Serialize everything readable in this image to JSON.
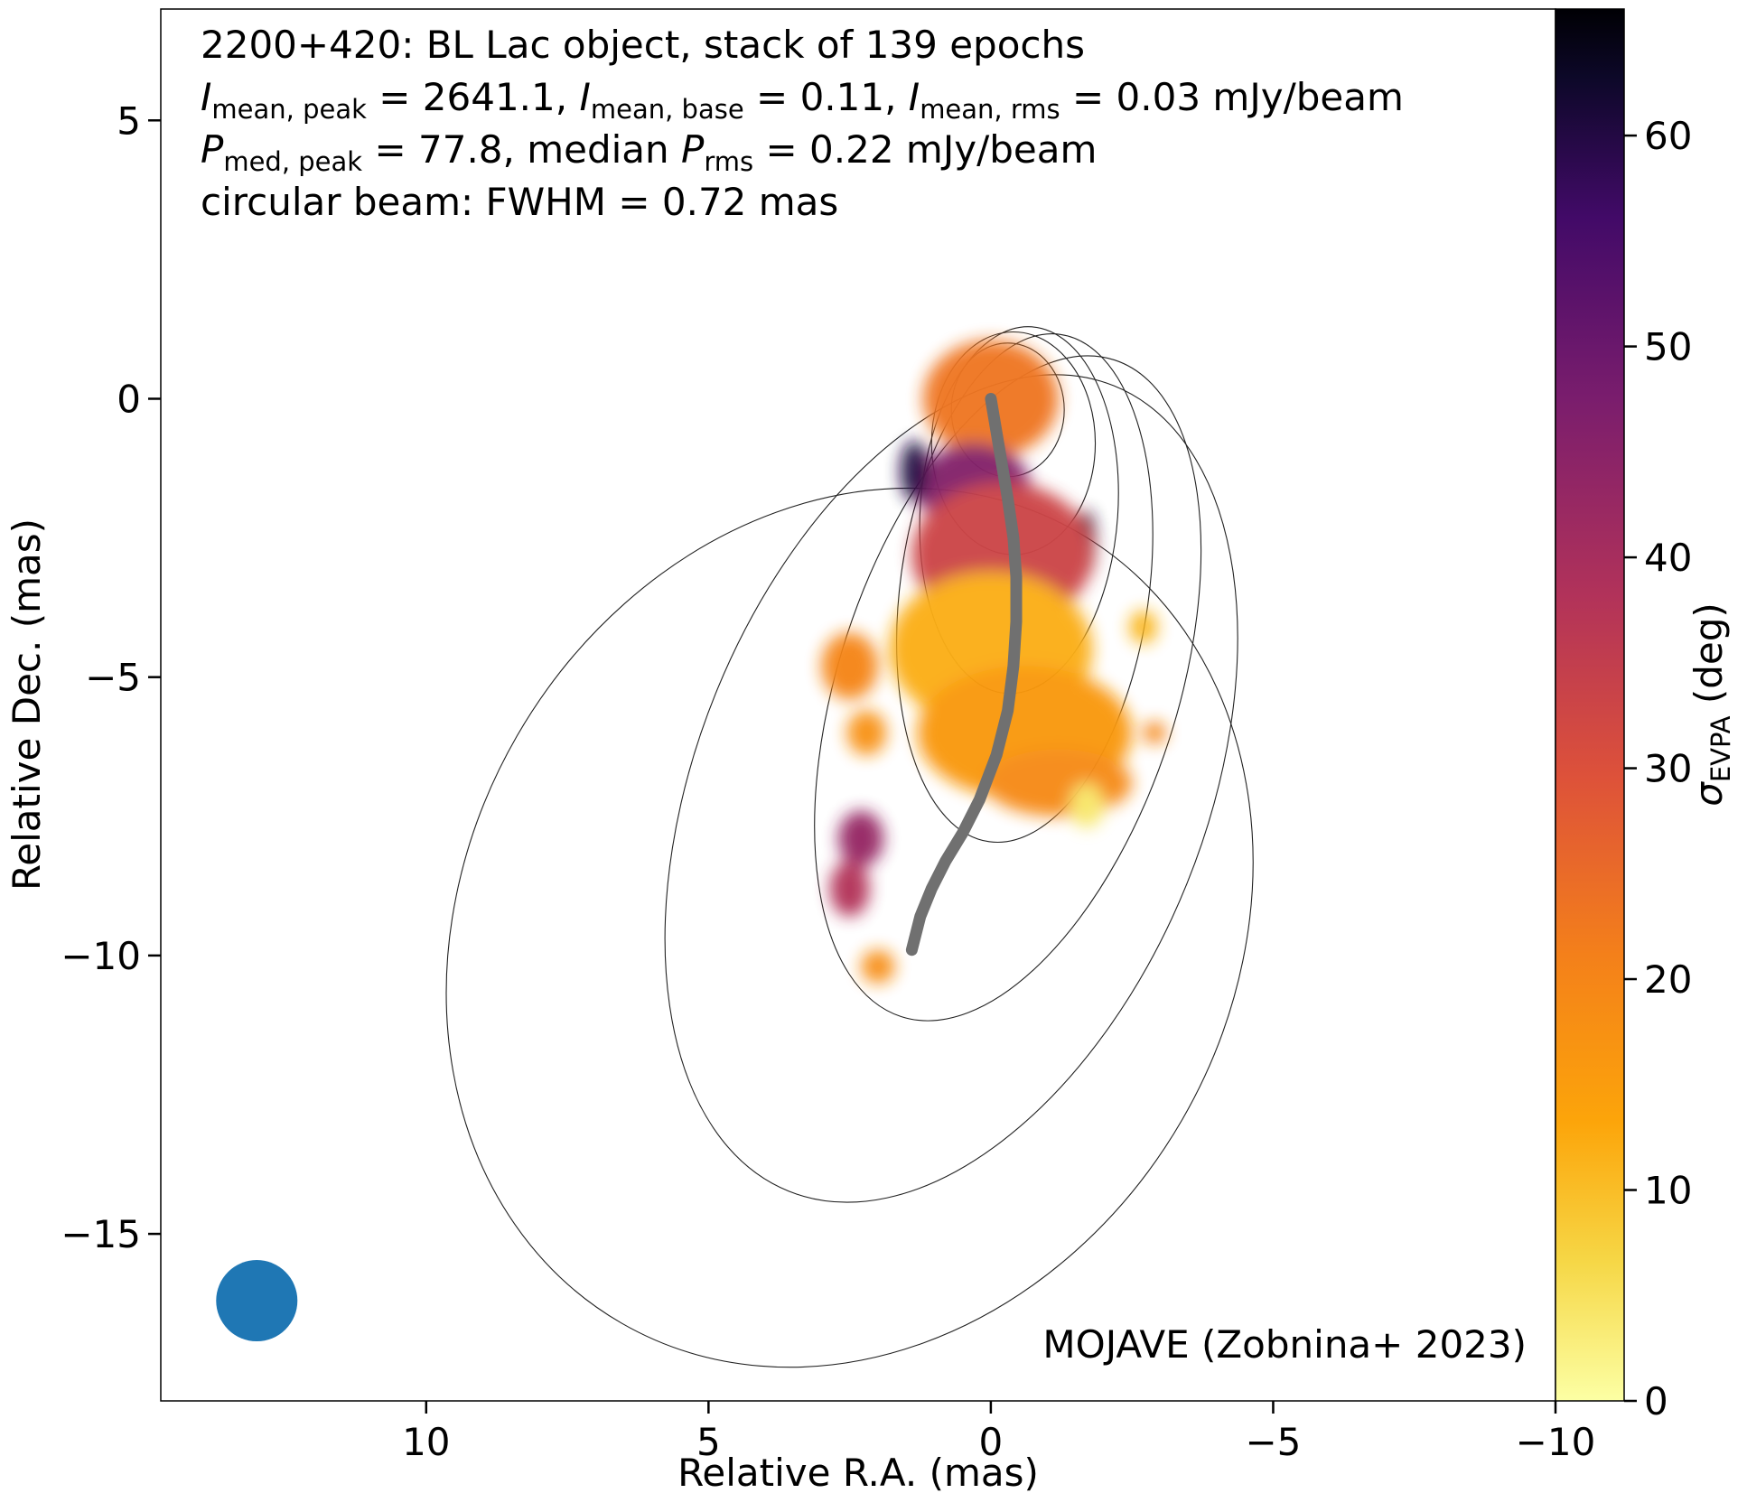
{
  "chart_data": {
    "type": "heatmap",
    "source": "MOJAVE (Zobnina+ 2023)",
    "info": {
      "line1": "2200+420: BL Lac object, stack of 139 epochs",
      "i_peak_value": "2641.1",
      "i_base_value": "0.11",
      "i_rms_value": "0.03",
      "p_peak_value": "77.8",
      "p_rms_value": "0.22",
      "unit": "mJy/beam",
      "median_label": "median",
      "beam_line": "circular beam: FWHM = 0.72 mas"
    },
    "xlabel": "Relative R.A. (mas)",
    "ylabel": "Relative Dec. (mas)",
    "colorbar_label_symbol": "σ",
    "colorbar_label_sub": "EVPA",
    "colorbar_label_unit": "(deg)",
    "xlim": [
      14.7,
      -10.0
    ],
    "ylim": [
      -18.0,
      7.0
    ],
    "colorbar_range": [
      0,
      66
    ],
    "x_ticks": [
      {
        "v": 10,
        "label": "10"
      },
      {
        "v": 5,
        "label": "5"
      },
      {
        "v": 0,
        "label": "0"
      },
      {
        "v": -5,
        "label": "−5"
      },
      {
        "v": -10,
        "label": "−10"
      }
    ],
    "y_ticks": [
      {
        "v": 5,
        "label": "5"
      },
      {
        "v": 0,
        "label": "0"
      },
      {
        "v": -5,
        "label": "−5"
      },
      {
        "v": -10,
        "label": "−10"
      },
      {
        "v": -15,
        "label": "−15"
      }
    ],
    "colorbar_ticks": [
      {
        "v": 0,
        "label": "0"
      },
      {
        "v": 10,
        "label": "10"
      },
      {
        "v": 20,
        "label": "20"
      },
      {
        "v": 30,
        "label": "30"
      },
      {
        "v": 40,
        "label": "40"
      },
      {
        "v": 50,
        "label": "50"
      },
      {
        "v": 60,
        "label": "60"
      }
    ],
    "colormap": "inferno_r",
    "beam": {
      "ra": 13.0,
      "dec": -16.2,
      "fwhm_mas": 0.72,
      "color": "#1f77b4"
    },
    "ridgeline": {
      "color": "#707070",
      "points": [
        [
          0.0,
          0.0
        ],
        [
          -0.1,
          -0.6
        ],
        [
          -0.2,
          -1.2
        ],
        [
          -0.3,
          -1.8
        ],
        [
          -0.4,
          -2.5
        ],
        [
          -0.45,
          -3.2
        ],
        [
          -0.45,
          -4.0
        ],
        [
          -0.4,
          -4.8
        ],
        [
          -0.3,
          -5.6
        ],
        [
          -0.1,
          -6.4
        ],
        [
          0.2,
          -7.2
        ],
        [
          0.5,
          -7.8
        ],
        [
          0.8,
          -8.3
        ],
        [
          1.05,
          -8.8
        ],
        [
          1.25,
          -9.3
        ],
        [
          1.4,
          -9.9
        ]
      ]
    },
    "total_intensity_contours": [
      {
        "ra": -0.3,
        "dec": -0.2,
        "a": 1.0,
        "b": 1.2,
        "rot": 0
      },
      {
        "ra": -0.4,
        "dec": -0.8,
        "a": 1.45,
        "b": 2.0,
        "rot": 0
      },
      {
        "ra": -0.5,
        "dec": -2.0,
        "a": 1.75,
        "b": 3.3,
        "rot": 4
      },
      {
        "ra": -0.6,
        "dec": -3.4,
        "a": 2.2,
        "b": 4.6,
        "rot": 8
      },
      {
        "ra": -0.3,
        "dec": -5.2,
        "a": 3.0,
        "b": 6.2,
        "rot": 18
      },
      {
        "ra": 0.7,
        "dec": -7.0,
        "a": 4.5,
        "b": 7.8,
        "rot": 22
      },
      {
        "ra": 2.5,
        "dec": -9.5,
        "a": 6.8,
        "b": 8.2,
        "rot": 30
      }
    ],
    "evpa_sigma_regions": [
      {
        "ra": 0.0,
        "dec": 0.0,
        "rx": 1.2,
        "ry": 1.05,
        "sigma": 23
      },
      {
        "ra": 0.3,
        "dec": -1.6,
        "rx": 1.0,
        "ry": 0.8,
        "sigma": 46
      },
      {
        "ra": 1.35,
        "dec": -1.3,
        "rx": 0.25,
        "ry": 0.55,
        "sigma": 60
      },
      {
        "ra": -1.7,
        "dec": -2.6,
        "rx": 0.15,
        "ry": 0.6,
        "sigma": 62
      },
      {
        "ra": -0.2,
        "dec": -2.8,
        "rx": 1.6,
        "ry": 1.3,
        "sigma": 33
      },
      {
        "ra": 0.0,
        "dec": -4.5,
        "rx": 1.8,
        "ry": 1.4,
        "sigma": 12
      },
      {
        "ra": -0.6,
        "dec": -6.0,
        "rx": 1.9,
        "ry": 1.2,
        "sigma": 16
      },
      {
        "ra": -1.2,
        "dec": -6.9,
        "rx": 1.3,
        "ry": 0.6,
        "sigma": 19
      },
      {
        "ra": -1.7,
        "dec": -7.3,
        "rx": 0.3,
        "ry": 0.4,
        "sigma": 4
      },
      {
        "ra": 2.5,
        "dec": -4.8,
        "rx": 0.5,
        "ry": 0.6,
        "sigma": 20
      },
      {
        "ra": 2.2,
        "dec": -6.0,
        "rx": 0.35,
        "ry": 0.4,
        "sigma": 17
      },
      {
        "ra": 2.3,
        "dec": -7.9,
        "rx": 0.4,
        "ry": 0.5,
        "sigma": 43
      },
      {
        "ra": 2.5,
        "dec": -8.8,
        "rx": 0.35,
        "ry": 0.5,
        "sigma": 38
      },
      {
        "ra": 2.0,
        "dec": -10.2,
        "rx": 0.3,
        "ry": 0.3,
        "sigma": 18
      },
      {
        "ra": -2.7,
        "dec": -4.1,
        "rx": 0.25,
        "ry": 0.3,
        "sigma": 11
      },
      {
        "ra": -2.9,
        "dec": -6.0,
        "rx": 0.2,
        "ry": 0.2,
        "sigma": 20
      }
    ]
  }
}
